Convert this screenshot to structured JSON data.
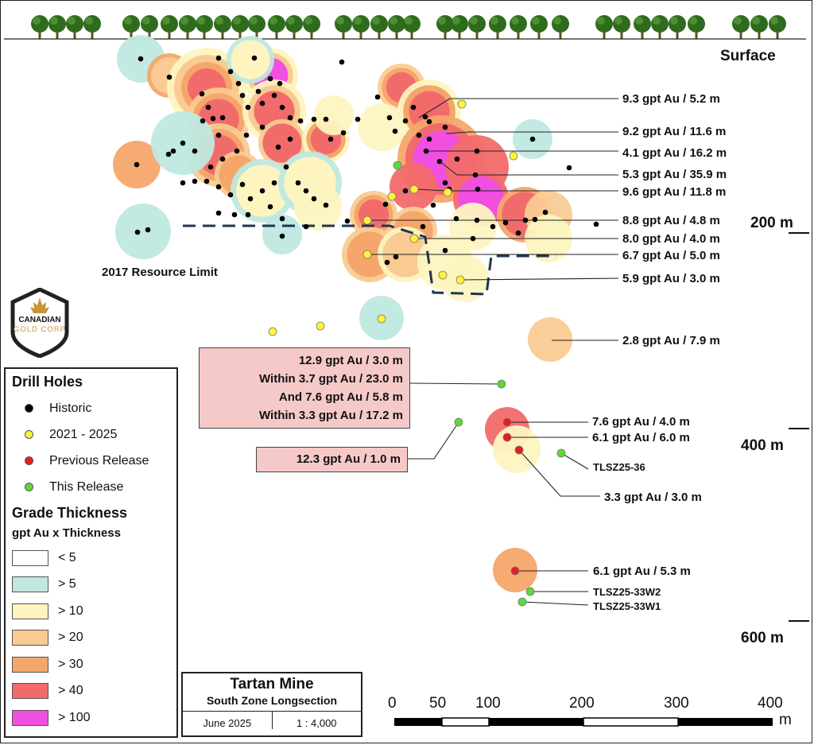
{
  "title": {
    "name": "Tartan Mine",
    "subtitle": "South Zone Longsection",
    "date": "June 2025",
    "scale": "1 : 4,000"
  },
  "surface_label": "Surface",
  "resource_limit_label": "2017 Resource Limit",
  "logo": {
    "line1": "CANADIAN",
    "line2": "GOLD CORP"
  },
  "depth_labels": [
    "200 m",
    "400 m",
    "600 m"
  ],
  "scale_bar": {
    "ticks": [
      "0",
      "50",
      "100",
      "200",
      "300",
      "400"
    ],
    "unit": "m"
  },
  "legend": {
    "drill_title": "Drill Holes",
    "drill_items": [
      {
        "label": "Historic",
        "color": "#000000"
      },
      {
        "label": "2021 - 2025",
        "color": "#fff33a"
      },
      {
        "label": "Previous Release",
        "color": "#e61e1e"
      },
      {
        "label": "This Release",
        "color": "#5bd93a"
      }
    ],
    "grade_title": "Grade Thickness",
    "grade_subtitle": "gpt Au x Thickness",
    "grade_items": [
      {
        "label": "< 5",
        "color": "#ffffff"
      },
      {
        "label": "> 5",
        "color": "#bfe8e0"
      },
      {
        "label": "> 10",
        "color": "#fdf4c0"
      },
      {
        "label": "> 20",
        "color": "#f9cb92"
      },
      {
        "label": "> 30",
        "color": "#f5a66a"
      },
      {
        "label": "> 40",
        "color": "#f26b6b"
      },
      {
        "label": "> 100",
        "color": "#f04fe0"
      }
    ]
  },
  "intercepts": [
    "9.3 gpt Au / 5.2 m",
    "9.2 gpt Au / 11.6 m",
    "4.1 gpt Au / 16.2 m",
    "5.3 gpt Au / 35.9 m",
    "9.6 gpt Au / 11.8 m",
    "8.8 gpt Au / 4.8 m",
    "8.0 gpt Au / 4.0 m",
    "6.7 gpt Au / 5.0 m",
    "5.9 gpt Au / 3.0 m",
    "2.8 gpt Au / 7.9 m",
    "7.6 gpt Au / 4.0 m",
    "6.1 gpt Au / 6.0 m",
    "3.3 gpt Au / 3.0 m",
    "6.1 gpt Au / 5.3 m"
  ],
  "hole_ids": [
    "TLSZ25-36",
    "TLSZ25-33W2",
    "TLSZ25-33W1"
  ],
  "callout_main": [
    "12.9 gpt Au / 3.0 m",
    "Within 3.7 gpt Au / 23.0 m",
    "And 7.6 gpt Au / 5.8 m",
    "Within 3.3 gpt Au / 17.2 m"
  ],
  "callout_secondary": "12.3 gpt Au / 1.0 m"
}
